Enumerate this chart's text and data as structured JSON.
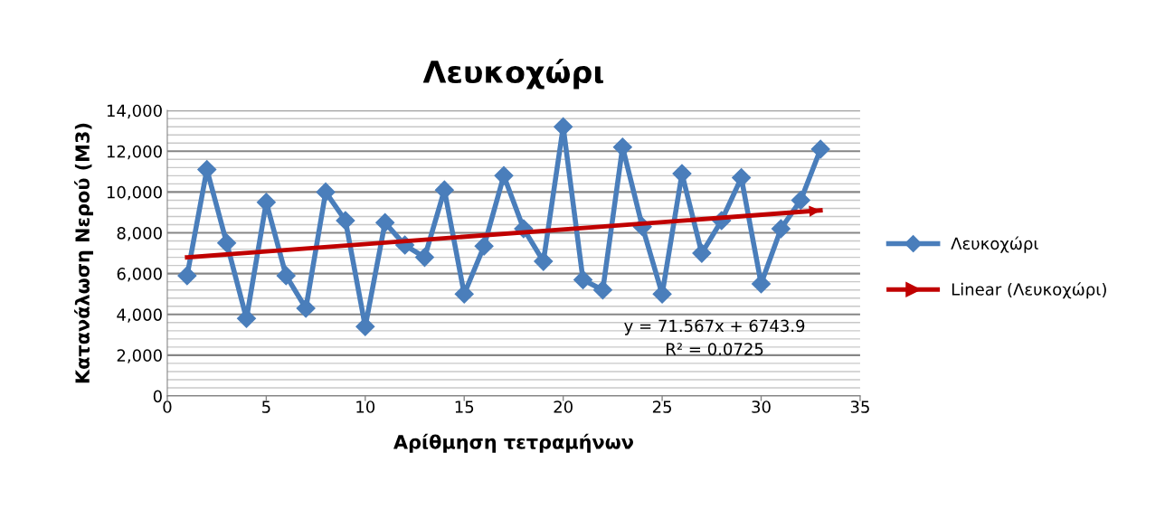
{
  "chart_data": {
    "type": "line",
    "title": "Λευκοχώρι",
    "xlabel": "Αρίθμηση τετραμήνων",
    "ylabel": "Κατανάλωση Νερού (Μ3)",
    "x": [
      1,
      2,
      3,
      4,
      5,
      6,
      7,
      8,
      9,
      10,
      11,
      12,
      13,
      14,
      15,
      16,
      17,
      18,
      19,
      20,
      21,
      22,
      23,
      24,
      25,
      26,
      27,
      28,
      29,
      30,
      31,
      32,
      33
    ],
    "series": [
      {
        "name": "Λευκοχώρι",
        "color": "#4a7ebb",
        "marker": "diamond",
        "values": [
          5900,
          11100,
          7500,
          3800,
          9500,
          5900,
          4300,
          10000,
          8600,
          3400,
          8500,
          7400,
          6800,
          10100,
          5000,
          7350,
          10800,
          8200,
          6600,
          13200,
          5700,
          5200,
          12200,
          8300,
          5000,
          10900,
          7000,
          8600,
          10700,
          5500,
          8200,
          9600,
          12100
        ]
      },
      {
        "name": "Linear (Λευκοχώρι)",
        "color": "#c00000",
        "marker": "none",
        "x": [
          1,
          33
        ],
        "values": [
          6800,
          9100
        ]
      }
    ],
    "xlim": [
      0,
      35
    ],
    "xticks": [
      0,
      5,
      10,
      15,
      20,
      25,
      30,
      35
    ],
    "ylim": [
      0,
      14000
    ],
    "yticks": [
      {
        "value": 0,
        "label": "0"
      },
      {
        "value": 400,
        "label": null
      },
      {
        "value": 800,
        "label": null
      },
      {
        "value": 1200,
        "label": null
      },
      {
        "value": 1600,
        "label": null
      },
      {
        "value": 2000,
        "label": "2,000"
      },
      {
        "value": 2400,
        "label": null
      },
      {
        "value": 2800,
        "label": null
      },
      {
        "value": 3200,
        "label": null
      },
      {
        "value": 3600,
        "label": null
      },
      {
        "value": 4000,
        "label": "4,000"
      },
      {
        "value": 4400,
        "label": null
      },
      {
        "value": 4800,
        "label": null
      },
      {
        "value": 5200,
        "label": null
      },
      {
        "value": 5600,
        "label": null
      },
      {
        "value": 6000,
        "label": "6,000"
      },
      {
        "value": 6400,
        "label": null
      },
      {
        "value": 6800,
        "label": null
      },
      {
        "value": 7200,
        "label": null
      },
      {
        "value": 7600,
        "label": null
      },
      {
        "value": 8000,
        "label": "8,000"
      },
      {
        "value": 8400,
        "label": null
      },
      {
        "value": 8800,
        "label": null
      },
      {
        "value": 9200,
        "label": null
      },
      {
        "value": 9600,
        "label": null
      },
      {
        "value": 10000,
        "label": "10,000"
      },
      {
        "value": 10400,
        "label": null
      },
      {
        "value": 10800,
        "label": null
      },
      {
        "value": 11200,
        "label": null
      },
      {
        "value": 11600,
        "label": null
      },
      {
        "value": 12000,
        "label": "12,000"
      },
      {
        "value": 12400,
        "label": null
      },
      {
        "value": 12800,
        "label": null
      },
      {
        "value": 13200,
        "label": null
      },
      {
        "value": 13600,
        "label": null
      },
      {
        "value": 14000,
        "label": "14,000"
      }
    ],
    "grid": "y",
    "legend": "right",
    "line_style": "solid",
    "annotations": [
      "y = 71.567x + 6743.9\nR² = 0.0725"
    ]
  }
}
